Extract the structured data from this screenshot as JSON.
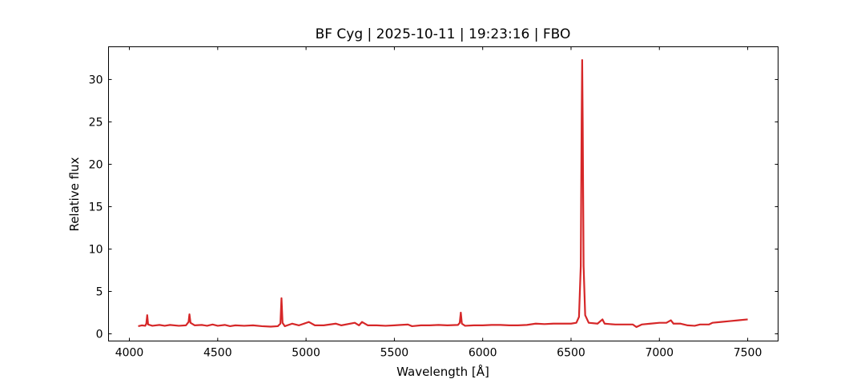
{
  "chart_data": {
    "type": "line",
    "title": "BF Cyg | 2025-10-11 | 19:23:16 | FBO",
    "x_label": "Wavelength [Å]",
    "y_label": "Relative flux",
    "x": [
      4050,
      4070,
      4090,
      4096,
      4101,
      4106,
      4130,
      4170,
      4200,
      4230,
      4280,
      4320,
      4335,
      4340,
      4346,
      4370,
      4410,
      4440,
      4471,
      4500,
      4540,
      4570,
      4600,
      4650,
      4700,
      4750,
      4800,
      4840,
      4855,
      4861,
      4867,
      4880,
      4922,
      4960,
      5016,
      5050,
      5100,
      5169,
      5200,
      5276,
      5300,
      5317,
      5350,
      5400,
      5450,
      5500,
      5535,
      5577,
      5600,
      5650,
      5700,
      5750,
      5800,
      5860,
      5870,
      5876,
      5882,
      5900,
      5950,
      6000,
      6050,
      6100,
      6150,
      6200,
      6250,
      6300,
      6350,
      6400,
      6450,
      6500,
      6530,
      6545,
      6555,
      6560,
      6563,
      6566,
      6571,
      6580,
      6600,
      6650,
      6678,
      6690,
      6750,
      6800,
      6850,
      6870,
      6900,
      6950,
      7000,
      7040,
      7065,
      7080,
      7120,
      7160,
      7200,
      7230,
      7280,
      7300,
      7350,
      7400,
      7450,
      7500
    ],
    "series": [
      {
        "color": "#d62728",
        "values": [
          0.9,
          1.0,
          0.95,
          1.2,
          2.2,
          1.1,
          0.95,
          1.05,
          0.95,
          1.05,
          0.95,
          1.0,
          1.4,
          2.3,
          1.3,
          1.0,
          1.05,
          0.95,
          1.1,
          0.95,
          1.05,
          0.9,
          1.0,
          0.95,
          1.0,
          0.9,
          0.85,
          0.9,
          1.2,
          4.2,
          1.3,
          0.9,
          1.2,
          1.0,
          1.4,
          1.0,
          1.0,
          1.2,
          1.0,
          1.3,
          1.0,
          1.4,
          1.0,
          1.0,
          0.95,
          1.0,
          1.05,
          1.1,
          0.9,
          1.0,
          1.0,
          1.05,
          1.0,
          1.05,
          1.3,
          2.5,
          1.2,
          0.95,
          1.0,
          1.0,
          1.05,
          1.05,
          1.0,
          1.0,
          1.05,
          1.2,
          1.15,
          1.2,
          1.2,
          1.2,
          1.3,
          2.0,
          8.0,
          25.0,
          32.3,
          25.0,
          8.0,
          2.2,
          1.3,
          1.2,
          1.7,
          1.2,
          1.1,
          1.1,
          1.1,
          0.8,
          1.1,
          1.2,
          1.3,
          1.3,
          1.6,
          1.2,
          1.2,
          1.0,
          0.95,
          1.1,
          1.1,
          1.3,
          1.4,
          1.5,
          1.6,
          1.7
        ]
      }
    ],
    "xlim": [
      3882,
      7672
    ],
    "ylim": [
      -0.85,
      33.86
    ],
    "xticks": [
      4000,
      4500,
      5000,
      5500,
      6000,
      6500,
      7000,
      7500
    ],
    "yticks": [
      0,
      5,
      10,
      15,
      20,
      25,
      30
    ]
  }
}
